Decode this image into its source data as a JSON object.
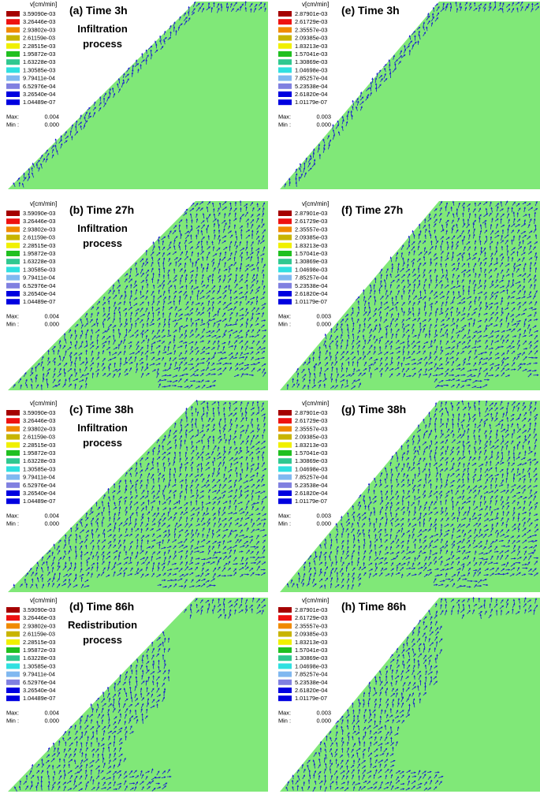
{
  "chart_data": {
    "type": "vector-field",
    "unit_label": "v[cm/min]",
    "legend_colors": [
      "#a50000",
      "#ee1111",
      "#f08a00",
      "#c8b400",
      "#f0f000",
      "#20c020",
      "#30c890",
      "#30e0e0",
      "#80b8f0",
      "#8080e0",
      "#0000e0"
    ],
    "background_color": "#80e878",
    "arrow_color": "#1a1ad0",
    "panels": [
      {
        "label": "(a) Time 3h",
        "process": [
          "Infiltration",
          "process"
        ],
        "column": "left",
        "row": 0,
        "shape": "triangle-thin",
        "legend": [
          "3.59090e-03",
          "3.26446e-03",
          "2.93802e-03",
          "2.61159e-03",
          "2.28515e-03",
          "1.95872e-03",
          "1.63228e-03",
          "1.30585e-03",
          "9.79411e-04",
          "6.52976e-04",
          "3.26540e-04",
          "1.04489e-07"
        ],
        "max_label": "Max:",
        "max": "0.004",
        "min_label": "Min :",
        "min": "0.000"
      },
      {
        "label": "(b) Time 27h",
        "process": [
          "Infiltration",
          "process"
        ],
        "column": "left",
        "row": 1,
        "shape": "triangle-full",
        "legend": [
          "3.59090e-03",
          "3.26446e-03",
          "2.93802e-03",
          "2.61159e-03",
          "2.28515e-03",
          "1.95872e-03",
          "1.63228e-03",
          "1.30585e-03",
          "9.79411e-04",
          "6.52976e-04",
          "3.26540e-04",
          "1.04489e-07"
        ],
        "max_label": "Max:",
        "max": "0.004",
        "min_label": "Min :",
        "min": "0.000"
      },
      {
        "label": "(c) Time 38h",
        "process": [
          "Infiltration",
          "process"
        ],
        "column": "left",
        "row": 2,
        "shape": "triangle-full",
        "legend": [
          "3.59090e-03",
          "3.26446e-03",
          "2.93802e-03",
          "2.61159e-03",
          "2.28515e-03",
          "1.95872e-03",
          "1.63228e-03",
          "1.30585e-03",
          "9.79411e-04",
          "6.52976e-04",
          "3.26540e-04",
          "1.04489e-07"
        ],
        "max_label": "Max:",
        "max": "0.004",
        "min_label": "Min :",
        "min": "0.000"
      },
      {
        "label": "(d) Time 86h",
        "process": [
          "Redistribution",
          "process"
        ],
        "column": "left",
        "row": 3,
        "shape": "triangle-band",
        "legend": [
          "3.59090e-03",
          "3.26446e-03",
          "2.93802e-03",
          "2.61159e-03",
          "2.28515e-03",
          "1.95872e-03",
          "1.63228e-03",
          "1.30585e-03",
          "9.79411e-04",
          "6.52976e-04",
          "3.26540e-04",
          "1.04489e-07"
        ],
        "max_label": "Max:",
        "max": "0.004",
        "min_label": "Min :",
        "min": "0.000"
      },
      {
        "label": "(e) Time 3h",
        "process": [],
        "column": "right",
        "row": 0,
        "shape": "triangle-thin",
        "legend": [
          "2.87901e-03",
          "2.61729e-03",
          "2.35557e-03",
          "2.09385e-03",
          "1.83213e-03",
          "1.57041e-03",
          "1.30869e-03",
          "1.04698e-03",
          "7.85257e-04",
          "5.23538e-04",
          "2.61820e-04",
          "1.01179e-07"
        ],
        "max_label": "Max:",
        "max": "0.003",
        "min_label": "Min :",
        "min": "0.000"
      },
      {
        "label": "(f) Time 27h",
        "process": [],
        "column": "right",
        "row": 1,
        "shape": "triangle-full",
        "legend": [
          "2.87901e-03",
          "2.61729e-03",
          "2.35557e-03",
          "2.09385e-03",
          "1.83213e-03",
          "1.57041e-03",
          "1.30869e-03",
          "1.04698e-03",
          "7.85257e-04",
          "5.23538e-04",
          "2.61820e-04",
          "1.01179e-07"
        ],
        "max_label": "Max:",
        "max": "0.003",
        "min_label": "Min :",
        "min": "0.000"
      },
      {
        "label": "(g) Time 38h",
        "process": [],
        "column": "right",
        "row": 2,
        "shape": "triangle-full",
        "legend": [
          "2.87901e-03",
          "2.61729e-03",
          "2.35557e-03",
          "2.09385e-03",
          "1.83213e-03",
          "1.57041e-03",
          "1.30869e-03",
          "1.04698e-03",
          "7.85257e-04",
          "5.23538e-04",
          "2.61820e-04",
          "1.01179e-07"
        ],
        "max_label": "Max:",
        "max": "0.003",
        "min_label": "Min :",
        "min": "0.000"
      },
      {
        "label": "(h) Time 86h",
        "process": [],
        "column": "right",
        "row": 3,
        "shape": "triangle-band",
        "legend": [
          "2.87901e-03",
          "2.61729e-03",
          "2.35557e-03",
          "2.09385e-03",
          "1.83213e-03",
          "1.57041e-03",
          "1.30869e-03",
          "1.04698e-03",
          "7.85257e-04",
          "5.23538e-04",
          "2.61820e-04",
          "1.01179e-07"
        ],
        "max_label": "Max:",
        "max": "0.003",
        "min_label": "Min :",
        "min": "0.000"
      }
    ]
  }
}
